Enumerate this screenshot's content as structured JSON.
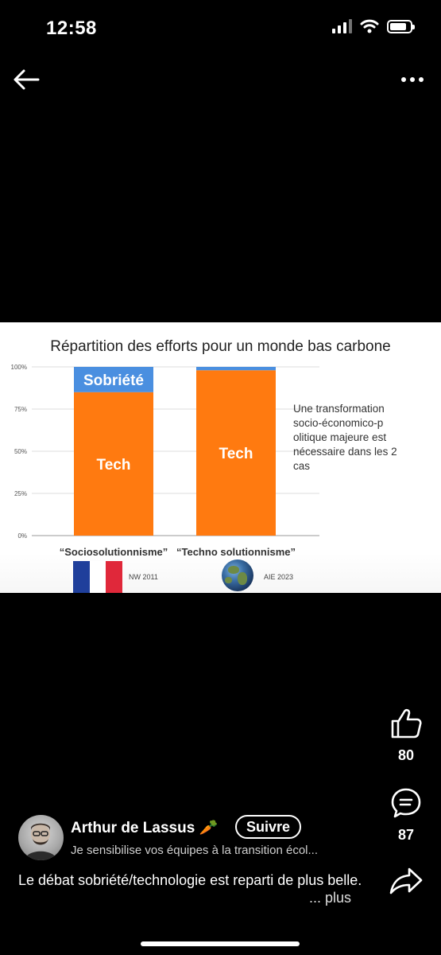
{
  "status_bar": {
    "time": "12:58"
  },
  "nav": {
    "back_icon": "arrow-left-icon",
    "more_icon": "ellipsis-icon"
  },
  "slide": {
    "title": "Répartition des efforts pour un monde bas carbone",
    "note": "Une transformation socio-économico-p olitique majeure est nécessaire dans les 2 cas",
    "sources": [
      "NW 2011",
      "AIE 2023"
    ],
    "flag_icon": "french-flag-icon",
    "globe_icon": "globe-icon"
  },
  "chart_data": {
    "type": "bar",
    "stacked": true,
    "categories": [
      "“Sociosolutionnisme”",
      "“Techno solutionnisme”"
    ],
    "series": [
      {
        "name": "Tech",
        "values": [
          85,
          98
        ],
        "color": "#FF7A10"
      },
      {
        "name": "Sobriété",
        "values": [
          15,
          2
        ],
        "color": "#4A8FE0"
      }
    ],
    "segment_labels": [
      {
        "category": 0,
        "series": 1,
        "text": "Sobriété"
      },
      {
        "category": 0,
        "series": 0,
        "text": "Tech"
      },
      {
        "category": 1,
        "series": 0,
        "text": "Tech"
      }
    ],
    "y_ticks": [
      "0%",
      "25%",
      "50%",
      "75%",
      "100%"
    ],
    "ylim": [
      0,
      100
    ],
    "grid": true
  },
  "actions": {
    "like": {
      "icon": "thumbs-up-icon",
      "count": "80"
    },
    "comment": {
      "icon": "comment-icon",
      "count": "87"
    },
    "share": {
      "icon": "share-icon"
    }
  },
  "author": {
    "name": "Arthur de Lassus 🥕",
    "follow_label": "Suivre",
    "subtitle": "Je sensibilise vos équipes à la transition écol..."
  },
  "post": {
    "caption": "Le débat sobriété/technologie est reparti de plus belle.",
    "more_label": "... plus"
  },
  "colors": {
    "tech": "#FF7A10",
    "sobriete": "#4A8FE0",
    "background": "#000000"
  }
}
